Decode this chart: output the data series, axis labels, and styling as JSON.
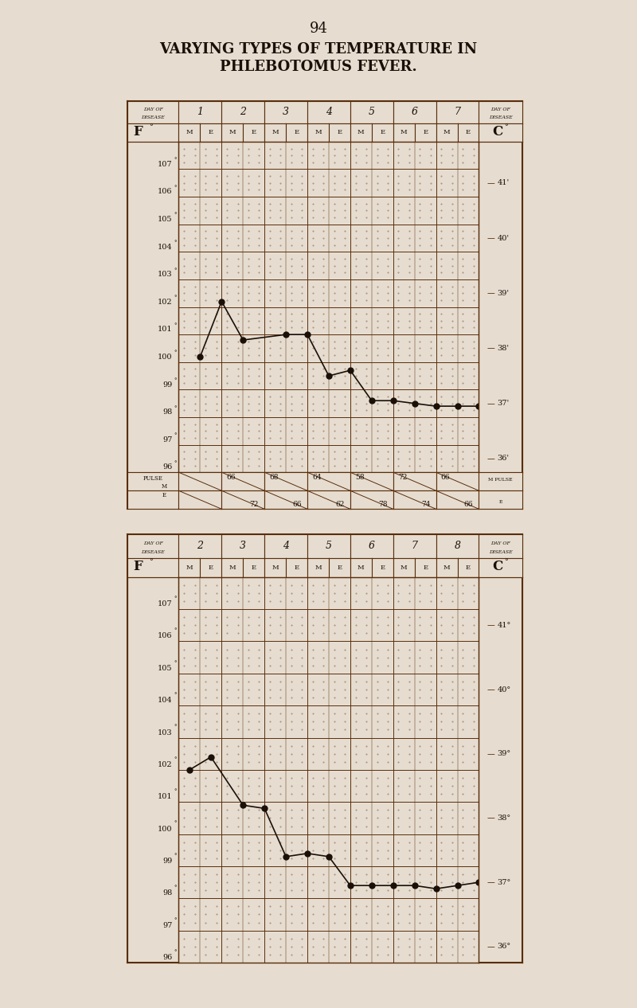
{
  "title_line1": "VARYING TYPES OF TEMPERATURE IN",
  "title_line2": "PHLEBOTOMUS FEVER.",
  "page_num": "94",
  "bg_color": "#e6ddd0",
  "grid_color": "#5a2d0c",
  "text_color": "#1a1008",
  "chart1": {
    "days": [
      "1",
      "2",
      "3",
      "4",
      "5",
      "6",
      "7"
    ],
    "f_min": 96,
    "f_max": 107,
    "data_x": [
      1,
      2,
      3,
      5,
      6,
      7,
      8,
      9,
      10,
      11,
      12,
      13,
      14
    ],
    "data_y": [
      100.2,
      102.2,
      100.8,
      101.0,
      101.0,
      99.5,
      99.7,
      98.6,
      98.6,
      98.5,
      98.4,
      98.4,
      98.4
    ],
    "pulse_m": [
      "",
      "66",
      "68",
      "64",
      "58",
      "72",
      "66"
    ],
    "pulse_e": [
      "",
      "72",
      "66",
      "62",
      "78",
      "74",
      "66"
    ],
    "celsius": [
      [
        "41'",
        106.5
      ],
      [
        "40'",
        104.5
      ],
      [
        "39'",
        102.5
      ],
      [
        "38'",
        100.5
      ],
      [
        "37'",
        98.5
      ],
      [
        "36'",
        96.5
      ]
    ]
  },
  "chart2": {
    "days": [
      "2",
      "3",
      "4",
      "5",
      "6",
      "7",
      "8"
    ],
    "f_min": 96,
    "f_max": 107,
    "data_x": [
      0.5,
      1.5,
      3,
      4,
      5,
      6,
      7,
      8,
      9,
      10,
      11,
      12,
      13,
      14
    ],
    "data_y": [
      102.0,
      102.4,
      100.9,
      100.8,
      99.3,
      99.4,
      99.3,
      98.4,
      98.4,
      98.4,
      98.4,
      98.3,
      98.4,
      98.5
    ],
    "celsius": [
      [
        "41°",
        106.5
      ],
      [
        "40°",
        104.5
      ],
      [
        "39°",
        102.5
      ],
      [
        "38°",
        100.5
      ],
      [
        "37°",
        98.5
      ],
      [
        "36°",
        96.5
      ]
    ]
  }
}
